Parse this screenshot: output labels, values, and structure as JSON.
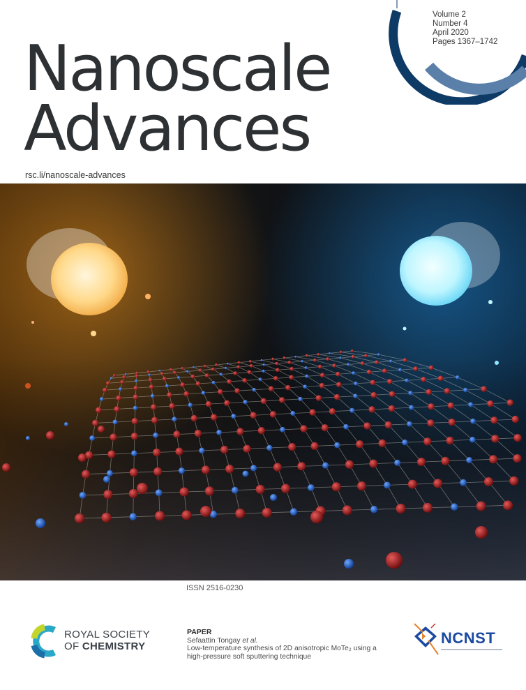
{
  "journal": {
    "title_line1": "Nanoscale",
    "title_line2": "Advances",
    "url": "rsc.li/nanoscale-advances",
    "issn": "ISSN 2516-0230"
  },
  "issue": {
    "volume": "Volume 2",
    "number": "Number 4",
    "date": "April 2020",
    "pages": "Pages 1367–1742"
  },
  "publisher": {
    "line1": "ROYAL SOCIETY",
    "line2_prefix": "OF ",
    "line2_bold": "CHEMISTRY"
  },
  "paper": {
    "label": "PAPER",
    "authors": "Sefaattin Tongay ",
    "authors_etal": "et al.",
    "title_line1": "Low-temperature synthesis of 2D anisotropic MoTe₂ using a",
    "title_line2": "high-pressure soft sputtering technique"
  },
  "partner": {
    "name": "NCNST"
  },
  "colors": {
    "title": "#2e3134",
    "arc_dark": "#0e3a66",
    "arc_light": "#5a7fa8",
    "warm_light": "#ffcf7a",
    "cool_light": "#9ef0ff",
    "atom_red": "#9a1414",
    "atom_blue": "#1a5ad0",
    "ncnst_blue": "#1b4aa0"
  }
}
